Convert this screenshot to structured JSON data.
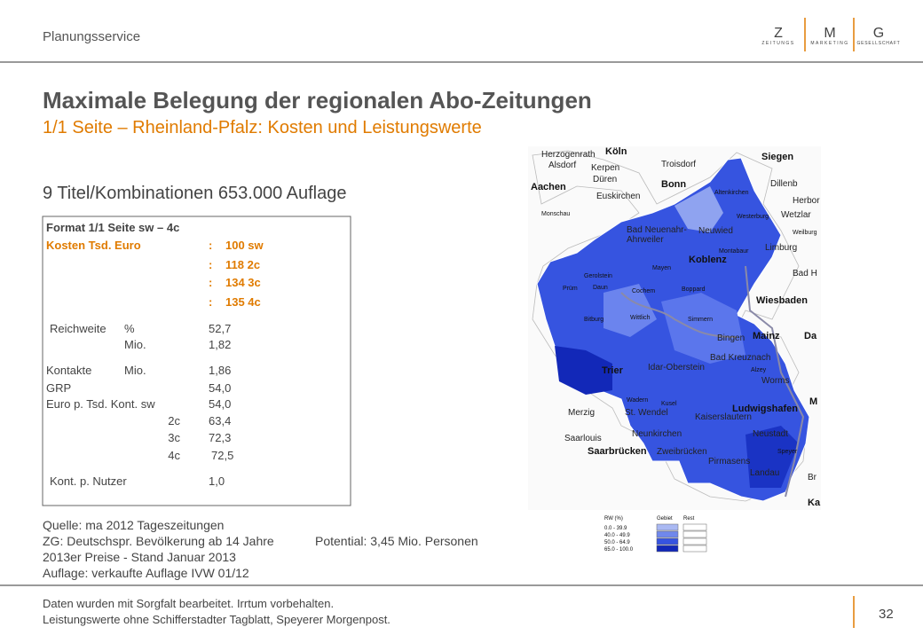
{
  "header": {
    "section": "Planungsservice",
    "logo": {
      "letters": [
        "Z",
        "M",
        "G"
      ],
      "words": [
        "ZEITUNGS",
        "MARKETING",
        "GESELLSCHAFT"
      ]
    }
  },
  "title": "Maximale Belegung der regionalen Abo-Zeitungen",
  "subtitle": "1/1 Seite – Rheinland-Pfalz: Kosten und Leistungswerte",
  "summary": "9 Titel/Kombinationen 653.000 Auflage",
  "format_table": {
    "heading": "Format 1/1 Seite sw – 4c",
    "costs": {
      "label": "Kosten Tsd. Euro",
      "separator": ":",
      "values": [
        "100 sw",
        "118 2c",
        "134 3c",
        "135 4c"
      ]
    },
    "metrics": [
      {
        "label": "Reichweite",
        "unit": "%",
        "value": "52,7"
      },
      {
        "unit": "Mio.",
        "value": "1,82"
      },
      {
        "label": "Kontakte",
        "unit": "Mio.",
        "value": "1,86"
      },
      {
        "label": "GRP",
        "value": "54,0"
      },
      {
        "label": "Euro p. Tsd. Kont. sw",
        "value": "54,0"
      },
      {
        "unit": "2c",
        "value": "63,4"
      },
      {
        "unit": "3c",
        "value": "72,3"
      },
      {
        "unit": "4c",
        "value": "72,5"
      },
      {
        "label": "Kont. p. Nutzer",
        "value": "1,0"
      }
    ]
  },
  "sources": [
    "Quelle: ma 2012 Tageszeitungen",
    "ZG: Deutschspr. Bevölkerung ab 14 Jahre",
    "Potential: 3,45 Mio. Personen",
    "2013er Preise - Stand Januar 2013",
    "Auflage: verkaufte Auflage IVW 01/12"
  ],
  "footer": {
    "lines": [
      "Daten wurden mit Sorgfalt bearbeitet. Irrtum vorbehalten.",
      "Leistungswerte ohne Schifferstadter Tagblatt, Speyerer Morgenpost."
    ],
    "page": "32"
  },
  "map": {
    "labels": [
      "Köln",
      "Siegen",
      "Herzogenrath",
      "Alsdorf",
      "Kerpen",
      "Troisdorf",
      "Aachen",
      "Düren",
      "Bonn",
      "Dillenb",
      "Euskirchen",
      "Altenkirchen",
      "Herbor",
      "Monschau",
      "Westerburg",
      "Wetzlar",
      "Bad Neuenahr-",
      "Ahrweiler",
      "Neuwied",
      "Weilburg",
      "Limburg",
      "Montabaur",
      "Koblenz",
      "Bad H",
      "Gerolstein",
      "Mayen",
      "Daun",
      "Boppard",
      "Cochem",
      "Prüm",
      "Wiesbaden",
      "Bitburg",
      "Wittlich",
      "Simmern",
      "Mainz",
      "Da",
      "Bingen",
      "Trier",
      "Idar-Oberstein",
      "Bad Kreuznach",
      "Alzey",
      "Worms",
      "Wadern",
      "Kusel",
      "Merzig",
      "St. Wendel",
      "Ludwigshafen",
      "M",
      "Kaiserslautern",
      "Saarlouis",
      "Neunkirchen",
      "Neustadt",
      "Speyer",
      "Saarbrücken",
      "Zweibrücken",
      "Pirmasens",
      "Landau",
      "Br",
      "Ka"
    ],
    "legend": {
      "title": "RW (%)",
      "columns": [
        "Gebiet",
        "Rest"
      ],
      "classes": [
        "0.0 - 39.9",
        "40.0 - 49.9",
        "50.0 - 64.9",
        "65.0 - 100.0"
      ]
    }
  }
}
